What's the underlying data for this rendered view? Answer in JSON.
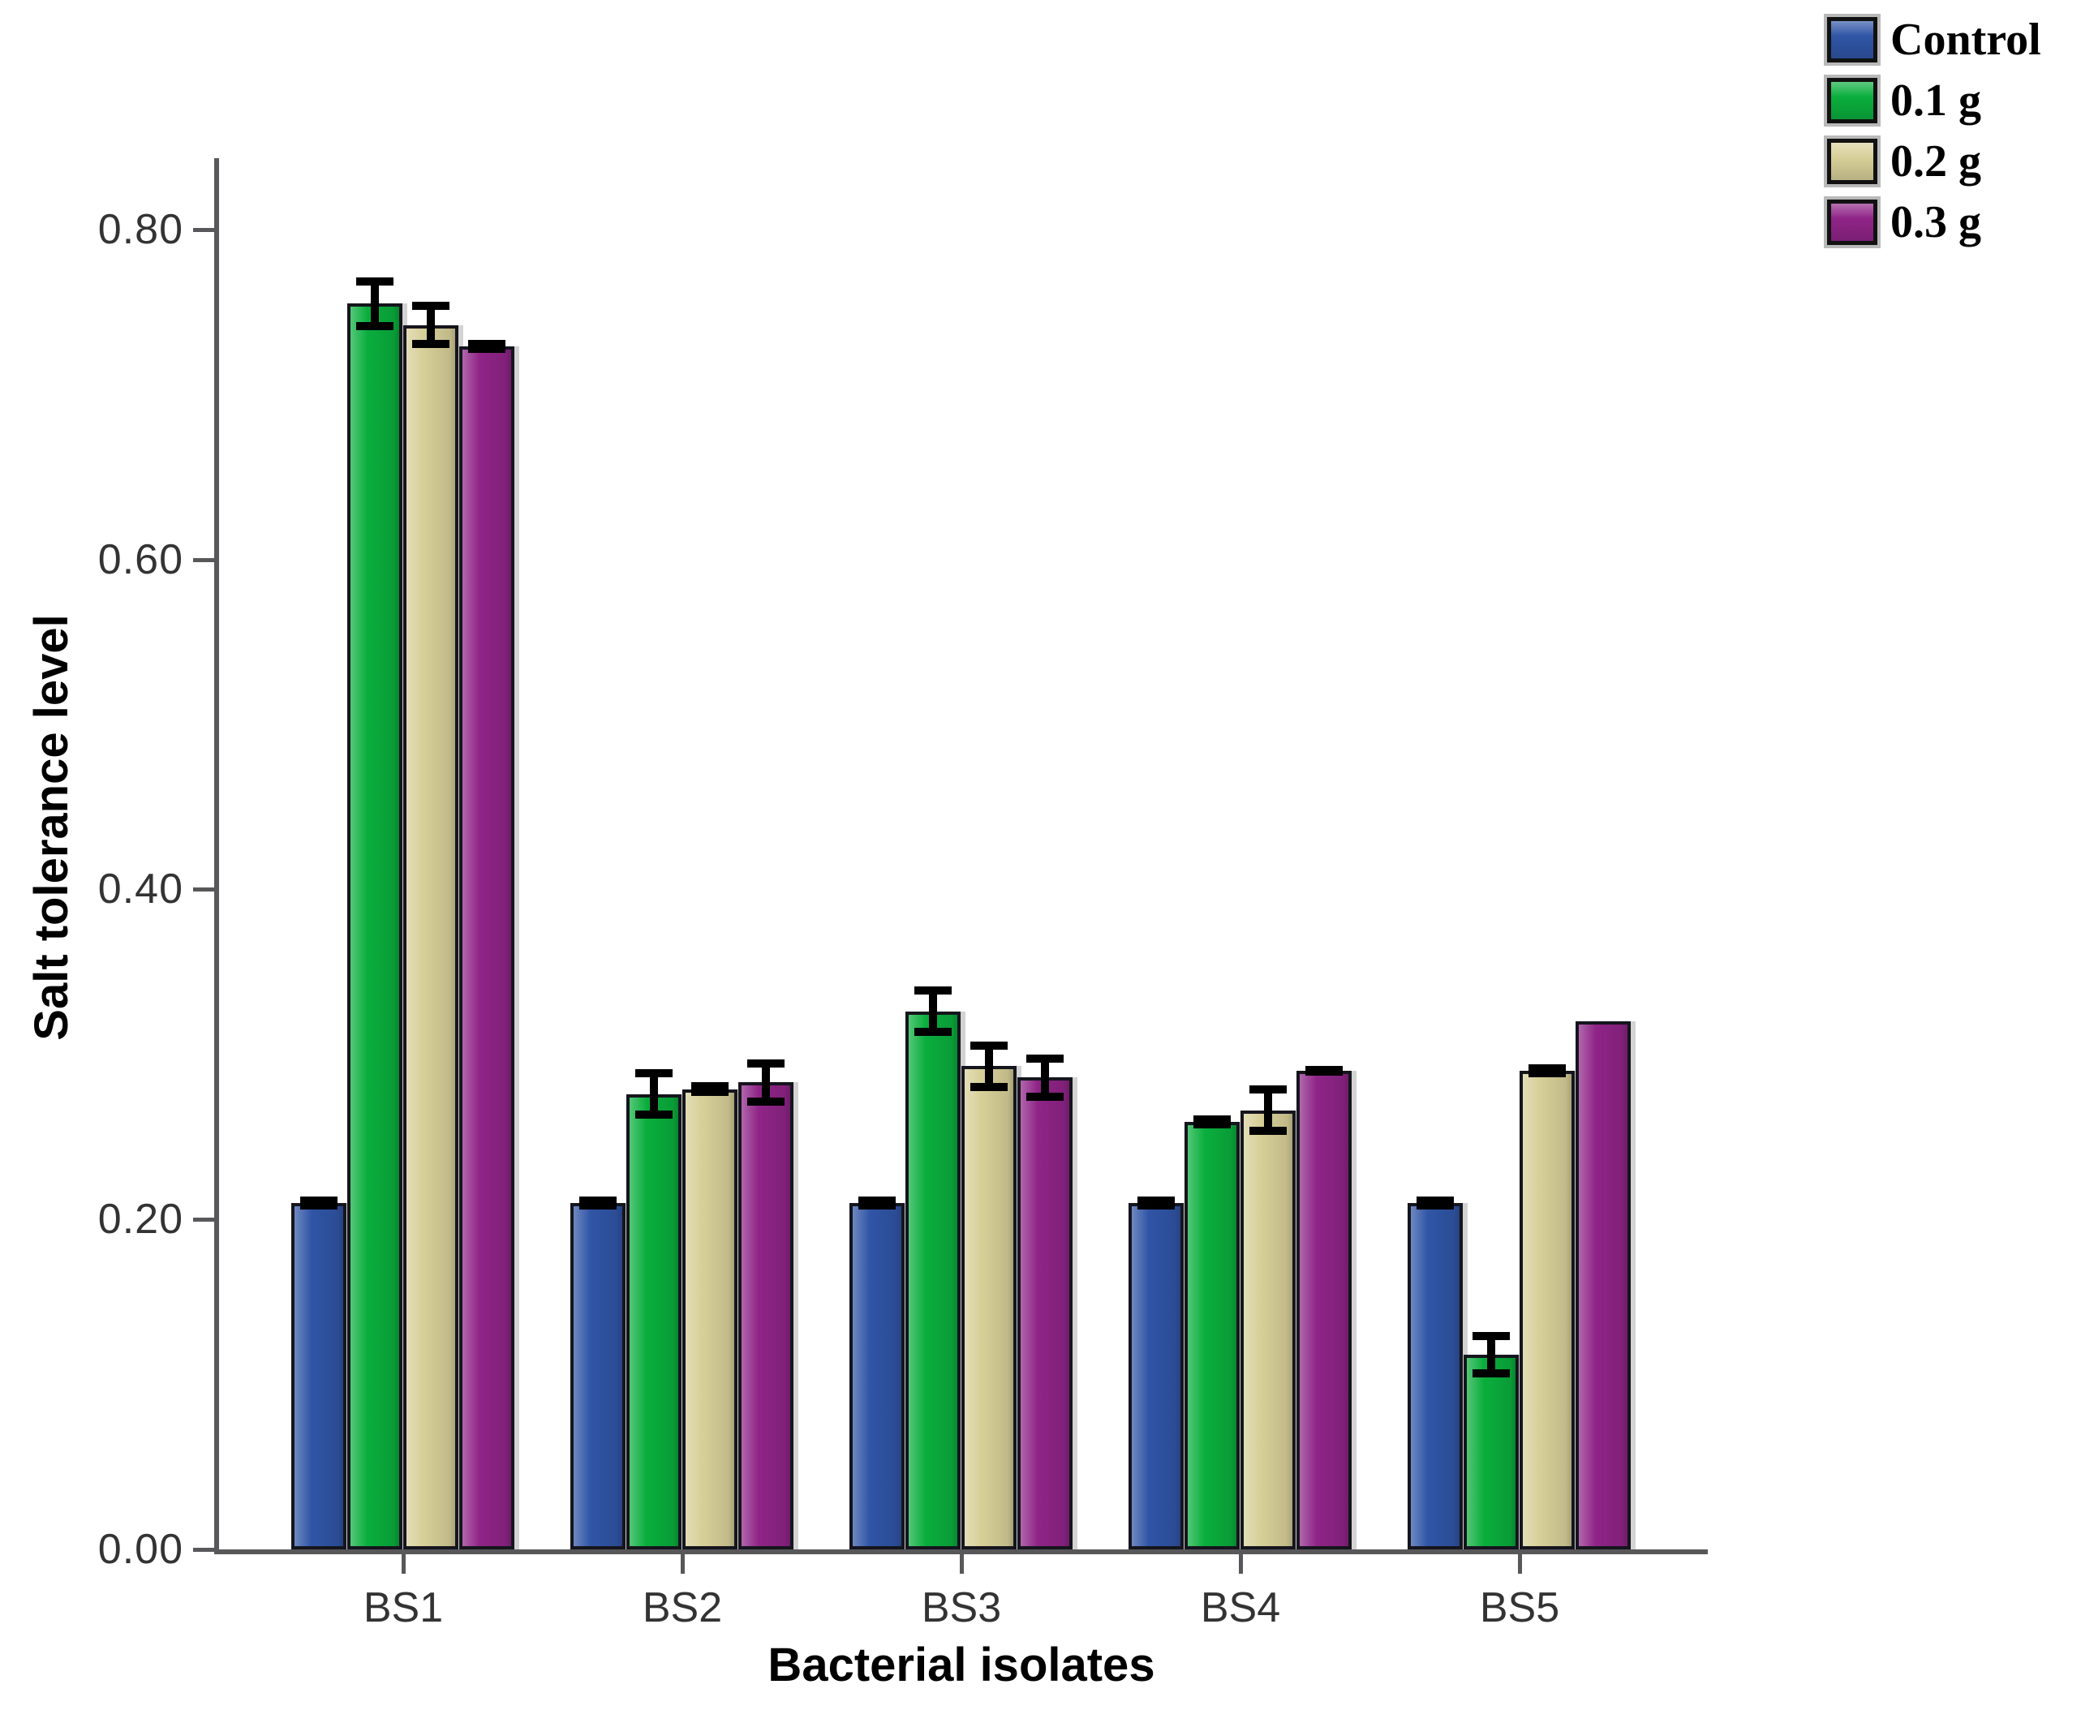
{
  "chart_data": {
    "type": "bar",
    "title": "",
    "xlabel": "Bacterial isolates",
    "ylabel": "Salt tolerance level",
    "categories": [
      "BS1",
      "BS2",
      "BS3",
      "BS4",
      "BS5"
    ],
    "series": [
      {
        "name": "Control",
        "color": "#3055a6",
        "values": [
          0.21,
          0.21,
          0.21,
          0.21,
          0.21
        ],
        "errors": [
          0.004,
          0.004,
          0.004,
          0.004,
          0.004
        ]
      },
      {
        "name": "0.1 g",
        "color": "#0aae3d",
        "values": [
          0.755,
          0.276,
          0.326,
          0.259,
          0.118
        ],
        "errors": [
          0.016,
          0.015,
          0.015,
          0.004,
          0.014
        ]
      },
      {
        "name": "0.2 g",
        "color": "#d7cf98",
        "values": [
          0.742,
          0.279,
          0.293,
          0.266,
          0.29
        ],
        "errors": [
          0.014,
          0.004,
          0.015,
          0.015,
          0.004
        ]
      },
      {
        "name": "0.3 g",
        "color": "#8f2487",
        "values": [
          0.729,
          0.283,
          0.286,
          0.29,
          0.32
        ],
        "errors": [
          0.004,
          0.014,
          0.014,
          0.003,
          0
        ]
      }
    ],
    "ylim": [
      0,
      0.84
    ],
    "ytick_values": [
      0,
      0.2,
      0.4,
      0.6,
      0.8
    ],
    "ytick_labels": [
      "0.00",
      "0.20",
      "0.40",
      "0.60",
      "0.80"
    ],
    "grid": "off",
    "legend_position": "top-right",
    "error_bars": true
  },
  "colors": {
    "axis": "#58585a",
    "tick_label": "#333333",
    "error_bar": "#000000",
    "bar_border": "#15151d",
    "background": "#ffffff"
  }
}
